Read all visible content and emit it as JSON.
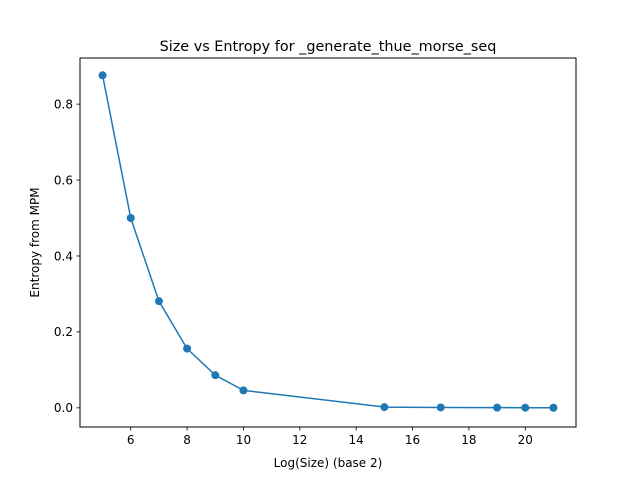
{
  "chart_data": {
    "type": "line",
    "title": "Size vs Entropy for _generate_thue_morse_seq",
    "xlabel": "Log(Size) (base 2)",
    "ylabel": "Entropy from MPM",
    "xlim": [
      4.2,
      21.8
    ],
    "ylim": [
      -0.0505,
      0.9215
    ],
    "xticks": [
      6,
      8,
      10,
      12,
      14,
      16,
      18,
      20
    ],
    "yticks": [
      0.0,
      0.2,
      0.4,
      0.6,
      0.8
    ],
    "xtick_labels": [
      "6",
      "8",
      "10",
      "12",
      "14",
      "16",
      "18",
      "20"
    ],
    "ytick_labels": [
      "0.0",
      "0.2",
      "0.4",
      "0.6",
      "0.8"
    ],
    "grid": false,
    "series": [
      {
        "color": "#1f77b4",
        "marker": "circle",
        "x": [
          5,
          6,
          7,
          8,
          9,
          10,
          15,
          17,
          19,
          20,
          21
        ],
        "y": [
          0.876,
          0.5,
          0.281,
          0.156,
          0.086,
          0.046,
          0.002,
          0.001,
          0.0005,
          0.0003,
          0.0002
        ]
      }
    ]
  }
}
